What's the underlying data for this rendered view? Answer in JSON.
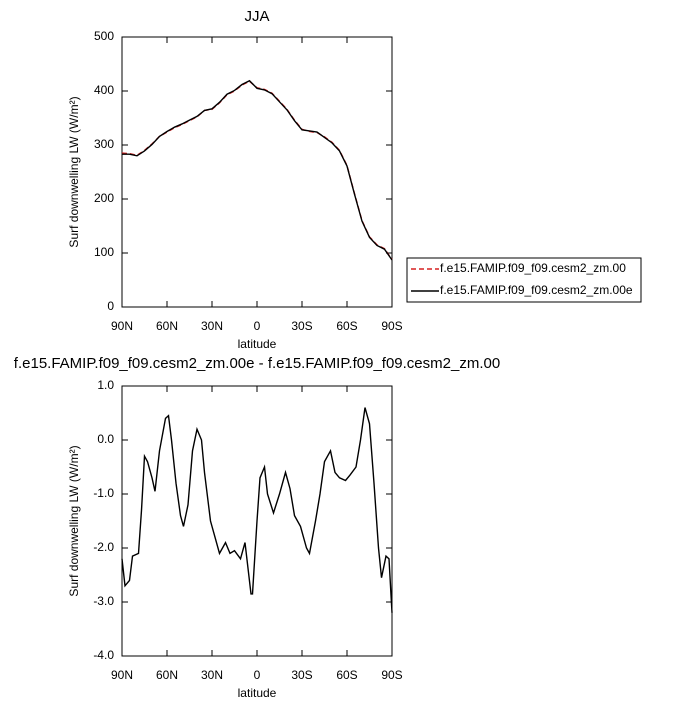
{
  "chart_data": [
    {
      "type": "line",
      "title": "JJA",
      "x_label": "latitude",
      "y_label": "Surf downwelling LW (W/m²)",
      "x": [
        90,
        85,
        80,
        75,
        70,
        65,
        60,
        55,
        50,
        45,
        40,
        35,
        30,
        25,
        20,
        15,
        10,
        5,
        0,
        -5,
        -10,
        -15,
        -20,
        -25,
        -30,
        -35,
        -40,
        -45,
        -50,
        -55,
        -60,
        -65,
        -70,
        -75,
        -80,
        -85,
        -90
      ],
      "series": [
        {
          "name": "f.e15.FAMIP.f09_f09.cesm2_zm.00",
          "color": "#d62020",
          "line_style": "dashed",
          "values": [
            285,
            284,
            281,
            290,
            302,
            316,
            324,
            332,
            338,
            345,
            352,
            364,
            366,
            378,
            393,
            400,
            411,
            418,
            406,
            403,
            396,
            381,
            366,
            346,
            329,
            325,
            323,
            315,
            305,
            290,
            262,
            210,
            160,
            130,
            115,
            108,
            88
          ]
        },
        {
          "name": "f.e15.FAMIP.f09_f09.cesm2_zm.00e",
          "color": "#000000",
          "line_style": "solid",
          "values": [
            283,
            283,
            280,
            289,
            301,
            316,
            325,
            333,
            339,
            346,
            353,
            364,
            367,
            379,
            394,
            401,
            412,
            419,
            405,
            402,
            395,
            380,
            365,
            345,
            328,
            326,
            324,
            314,
            304,
            289,
            261,
            209,
            159,
            129,
            114,
            107,
            87
          ]
        }
      ],
      "xlim": [
        90,
        -90
      ],
      "xticks": [
        {
          "value": 90,
          "label": "90N"
        },
        {
          "value": 60,
          "label": "60N"
        },
        {
          "value": 30,
          "label": "30N"
        },
        0,
        {
          "value": -30,
          "label": "30S"
        },
        {
          "value": -60,
          "label": "60S"
        },
        {
          "value": -90,
          "label": "90S"
        }
      ],
      "ylim": [
        0,
        500
      ],
      "yticks": [
        0,
        100,
        200,
        300,
        400,
        500
      ],
      "legend": "right"
    },
    {
      "type": "line",
      "title": "f.e15.FAMIP.f09_f09.cesm2_zm.00e - f.e15.FAMIP.f09_f09.cesm2_zm.00",
      "x_label": "latitude",
      "y_label": "Surf downwelling LW (W/m²)",
      "x": [
        90,
        88,
        85,
        83,
        79,
        77,
        75,
        73,
        70,
        68,
        65,
        61,
        59,
        57,
        54,
        51,
        49,
        46,
        43,
        40,
        37,
        35,
        31,
        28,
        25,
        21,
        18,
        15,
        11,
        8,
        4,
        3,
        0,
        -2,
        -5,
        -7,
        -11,
        -15,
        -19,
        -22,
        -25,
        -29,
        -33,
        -35,
        -39,
        -42,
        -45,
        -49,
        -52,
        -55,
        -59,
        -62,
        -66,
        -69,
        -72,
        -75,
        -78,
        -81,
        -83,
        -86,
        -88,
        -90
      ],
      "series": [
        {
          "color": "#000000",
          "line_style": "solid",
          "values": [
            -2.2,
            -2.7,
            -2.6,
            -2.15,
            -2.1,
            -1.3,
            -0.3,
            -0.4,
            -0.7,
            -0.95,
            -0.2,
            0.4,
            0.45,
            0.0,
            -0.8,
            -1.4,
            -1.6,
            -1.2,
            -0.2,
            0.2,
            0.0,
            -0.6,
            -1.5,
            -1.8,
            -2.1,
            -1.9,
            -2.1,
            -2.05,
            -2.2,
            -1.9,
            -2.85,
            -2.85,
            -1.5,
            -0.7,
            -0.5,
            -1.0,
            -1.35,
            -1.0,
            -0.6,
            -0.9,
            -1.4,
            -1.6,
            -2.0,
            -2.1,
            -1.5,
            -1.0,
            -0.4,
            -0.2,
            -0.6,
            -0.7,
            -0.75,
            -0.65,
            -0.5,
            0.0,
            0.6,
            0.3,
            -0.8,
            -2.0,
            -2.55,
            -2.15,
            -2.2,
            -3.2
          ]
        }
      ],
      "xlim": [
        90,
        -90
      ],
      "xticks": [
        {
          "value": 90,
          "label": "90N"
        },
        {
          "value": 60,
          "label": "60N"
        },
        {
          "value": 30,
          "label": "30N"
        },
        0,
        {
          "value": -30,
          "label": "30S"
        },
        {
          "value": -60,
          "label": "60S"
        },
        {
          "value": -90,
          "label": "90S"
        }
      ],
      "ylim": [
        -4,
        1
      ],
      "yticks": [
        {
          "value": -4,
          "label": "-4.0"
        },
        {
          "value": -3,
          "label": "-3.0"
        },
        {
          "value": -2,
          "label": "-2.0"
        },
        {
          "value": -1,
          "label": "-1.0"
        },
        {
          "value": 0,
          "label": "0.0"
        },
        {
          "value": 1,
          "label": "1.0"
        }
      ]
    }
  ]
}
